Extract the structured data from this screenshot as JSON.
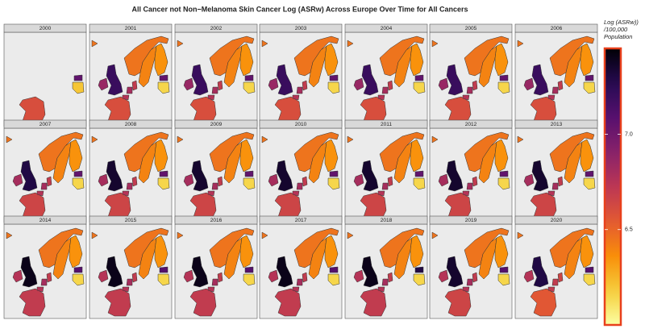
{
  "chart_data": {
    "type": "choropleth",
    "title": "All Cancer not Non−Melanoma Skin Cancer Log (ASRw) Across Europe Over Time for All Cancers",
    "panels": [
      "2000",
      "2001",
      "2002",
      "2003",
      "2004",
      "2005",
      "2006",
      "2007",
      "2008",
      "2009",
      "2010",
      "2011",
      "2012",
      "2013",
      "2014",
      "2015",
      "2016",
      "2017",
      "2018",
      "2019",
      "2020"
    ],
    "legend_title": [
      "Log (ASRw))",
      "/100,000",
      "Population"
    ],
    "clim": [
      6.0,
      7.45
    ],
    "cticks": [
      6.5,
      {
        "value": 7,
        "label": "7.0"
      }
    ],
    "palette": "inferno-reversed",
    "legend_border_color": "#e8401c",
    "series": [
      {
        "name": "Iceland",
        "values": [
          null,
          6.45,
          6.45,
          6.45,
          6.45,
          6.45,
          6.45,
          6.45,
          6.45,
          6.45,
          6.45,
          6.45,
          6.45,
          6.45,
          6.45,
          6.45,
          6.45,
          6.45,
          6.45,
          6.45,
          6.45
        ]
      },
      {
        "name": "Ireland",
        "values": [
          null,
          6.85,
          6.85,
          6.85,
          6.85,
          6.85,
          6.85,
          6.8,
          6.8,
          6.8,
          6.8,
          6.8,
          6.8,
          6.8,
          6.75,
          6.75,
          6.75,
          6.75,
          6.75,
          6.75,
          6.75
        ]
      },
      {
        "name": "United Kingdom",
        "values": [
          null,
          7.2,
          7.2,
          7.2,
          7.2,
          7.2,
          7.2,
          7.3,
          7.35,
          7.35,
          7.35,
          7.35,
          7.35,
          7.35,
          7.4,
          7.4,
          7.4,
          7.4,
          7.4,
          7.35,
          7.3
        ]
      },
      {
        "name": "France",
        "values": [
          6.6,
          6.6,
          6.6,
          6.6,
          6.6,
          6.6,
          6.6,
          6.65,
          6.65,
          6.65,
          6.65,
          6.65,
          6.65,
          6.65,
          6.7,
          6.7,
          6.7,
          6.7,
          6.7,
          6.65,
          6.55
        ]
      },
      {
        "name": "Belgium",
        "values": [
          null,
          6.75,
          6.75,
          6.75,
          6.75,
          6.75,
          6.75,
          6.75,
          6.75,
          6.75,
          6.75,
          6.75,
          6.75,
          6.75,
          6.75,
          6.75,
          6.75,
          6.75,
          6.75,
          6.75,
          6.7
        ]
      },
      {
        "name": "Netherlands",
        "values": [
          null,
          6.8,
          6.8,
          6.8,
          6.8,
          6.8,
          6.8,
          6.8,
          6.8,
          6.8,
          6.8,
          6.8,
          6.8,
          6.8,
          6.8,
          6.8,
          6.8,
          6.8,
          6.8,
          6.8,
          6.7
        ]
      },
      {
        "name": "Denmark",
        "values": [
          null,
          6.7,
          6.7,
          6.7,
          6.7,
          6.7,
          6.7,
          6.7,
          6.7,
          6.7,
          6.7,
          6.7,
          6.7,
          6.7,
          6.7,
          6.7,
          6.7,
          6.7,
          6.7,
          6.7,
          6.65
        ]
      },
      {
        "name": "Norway",
        "values": [
          null,
          6.45,
          6.45,
          6.45,
          6.45,
          6.45,
          6.45,
          6.45,
          6.45,
          6.45,
          6.45,
          6.45,
          6.45,
          6.45,
          6.45,
          6.45,
          6.45,
          6.45,
          6.45,
          6.45,
          6.45
        ]
      },
      {
        "name": "Sweden",
        "values": [
          null,
          6.4,
          6.4,
          6.4,
          6.4,
          6.4,
          6.4,
          6.4,
          6.4,
          6.4,
          6.4,
          6.4,
          6.4,
          6.4,
          6.4,
          6.4,
          6.4,
          6.4,
          6.4,
          6.4,
          6.4
        ]
      },
      {
        "name": "Finland",
        "values": [
          null,
          6.35,
          6.35,
          6.35,
          6.35,
          6.35,
          6.35,
          6.35,
          6.35,
          6.35,
          6.35,
          6.35,
          6.35,
          6.35,
          6.35,
          6.35,
          6.35,
          6.35,
          6.35,
          6.35,
          6.35
        ]
      },
      {
        "name": "Estonia",
        "values": [
          7.05,
          7.05,
          7.05,
          7.05,
          7.05,
          7.05,
          7.05,
          7.05,
          7.05,
          7.05,
          7.05,
          7.05,
          7.05,
          7.05,
          7.1,
          7.1,
          7.1,
          7.1,
          7.3,
          7.1,
          7.1
        ]
      },
      {
        "name": "Latvia",
        "values": [
          6.2,
          6.15,
          6.15,
          6.15,
          6.15,
          6.15,
          6.15,
          6.15,
          6.15,
          6.15,
          6.15,
          6.15,
          6.15,
          6.15,
          6.15,
          6.15,
          6.15,
          6.15,
          6.15,
          6.15,
          6.15
        ]
      }
    ]
  }
}
